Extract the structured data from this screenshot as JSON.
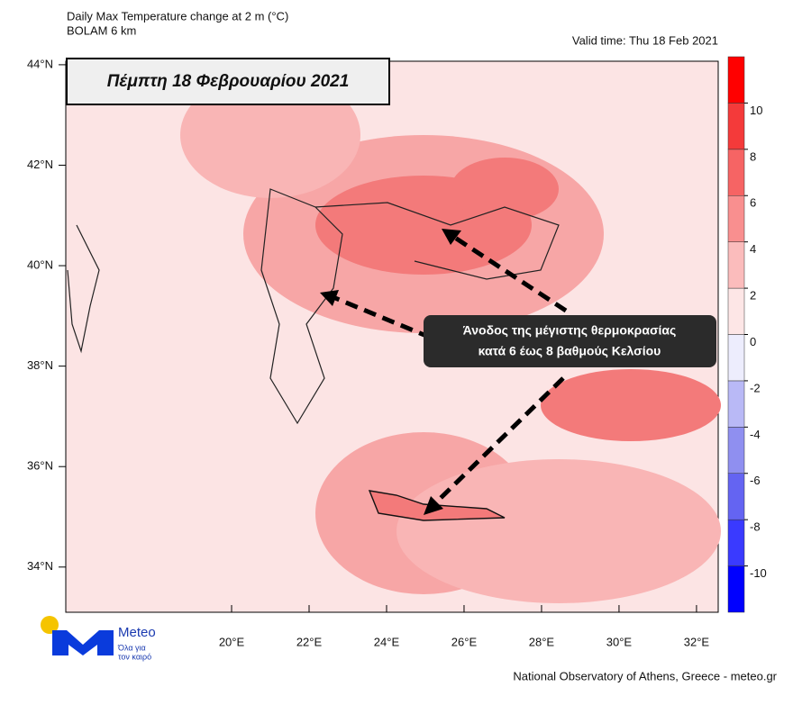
{
  "header": {
    "title": "Daily Max Temperature change at 2 m (°C)",
    "model": "BOLAM 6 km",
    "valid": "Valid time: Thu 18 Feb 2021"
  },
  "date_box": "Πέμπτη 18 Φεβρουαρίου 2021",
  "annotation": [
    "Άνοδος της μέγιστης θερμοκρασίας",
    "κατά 6 έως 8 βαθμούς Κελσίου"
  ],
  "map": {
    "lon_range": [
      15.72,
      32.56
    ],
    "lat_range": [
      33.1,
      44.07
    ],
    "lon_ticks": [
      {
        "value": 20,
        "label": "20°E"
      },
      {
        "value": 22,
        "label": "22°E"
      },
      {
        "value": 24,
        "label": "24°E"
      },
      {
        "value": 26,
        "label": "26°E"
      },
      {
        "value": 28,
        "label": "28°E"
      },
      {
        "value": 30,
        "label": "30°E"
      },
      {
        "value": 32,
        "label": "32°E"
      }
    ],
    "lat_ticks": [
      {
        "value": 44,
        "label": "44°N"
      },
      {
        "value": 42,
        "label": "42°N"
      },
      {
        "value": 40,
        "label": "40°N"
      },
      {
        "value": 38,
        "label": "38°N"
      },
      {
        "value": 36,
        "label": "36°N"
      },
      {
        "value": 34,
        "label": "34°N"
      }
    ]
  },
  "colorbar": {
    "range": [
      -12,
      12
    ],
    "ticks": [
      10,
      8,
      6,
      4,
      2,
      0,
      -2,
      -4,
      -6,
      -8,
      -10
    ],
    "colors": [
      "#0000ff",
      "#3a3aff",
      "#6464f2",
      "#8f8ff0",
      "#b9b9f6",
      "#ededfd",
      "#fde6e6",
      "#fbbcbc",
      "#f98f8f",
      "#f66464",
      "#f43a3a",
      "#ff0000"
    ]
  },
  "logo": {
    "name": "Meteo",
    "line1": "Όλα για",
    "line2": "τον καιρό"
  },
  "footer": "National Observatory of Athens, Greece - meteo.gr"
}
